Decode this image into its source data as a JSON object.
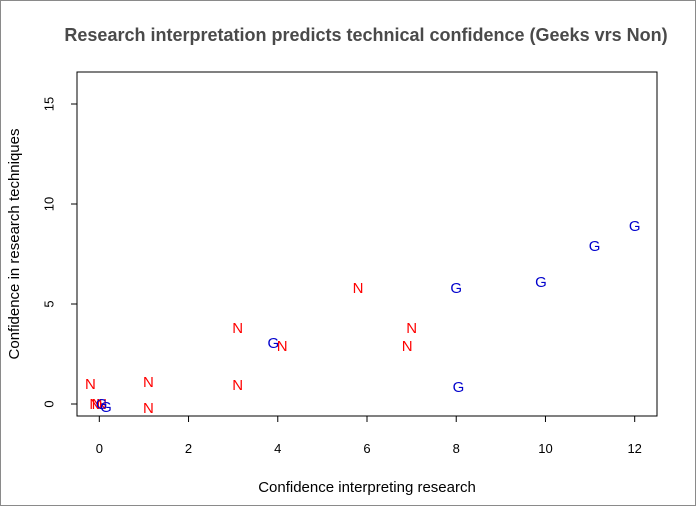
{
  "chart_data": {
    "type": "scatter",
    "title": "Research interpretation predicts technical confidence (Geeks vrs Non)",
    "xlabel": "Confidence interpreting research",
    "ylabel": "Confidence in research techniques",
    "xlim": [
      -0.5,
      12.5
    ],
    "ylim": [
      -0.6,
      16.6
    ],
    "xticks": [
      0,
      2,
      4,
      6,
      8,
      10,
      12
    ],
    "yticks": [
      0,
      5,
      10,
      15
    ],
    "grid": false,
    "colors": {
      "N": "#ff0000",
      "G": "#0000cc"
    },
    "series": [
      {
        "name": "N",
        "marker": "N",
        "points": [
          {
            "x": -0.2,
            "y": 1.0
          },
          {
            "x": -0.1,
            "y": 0.0
          },
          {
            "x": -0.05,
            "y": 0.0
          },
          {
            "x": 0.05,
            "y": 0.0
          },
          {
            "x": 1.1,
            "y": 1.1
          },
          {
            "x": 1.1,
            "y": -0.2
          },
          {
            "x": 3.1,
            "y": 3.8
          },
          {
            "x": 3.1,
            "y": 0.95
          },
          {
            "x": 4.1,
            "y": 2.9
          },
          {
            "x": 5.8,
            "y": 5.8
          },
          {
            "x": 7.0,
            "y": 3.8
          },
          {
            "x": 6.9,
            "y": 2.9
          }
        ]
      },
      {
        "name": "G",
        "marker": "G",
        "points": [
          {
            "x": 0.05,
            "y": 0.0
          },
          {
            "x": 0.15,
            "y": -0.15
          },
          {
            "x": 3.9,
            "y": 3.05
          },
          {
            "x": 8.0,
            "y": 5.8
          },
          {
            "x": 8.05,
            "y": 0.85
          },
          {
            "x": 9.9,
            "y": 6.1
          },
          {
            "x": 11.1,
            "y": 7.9
          },
          {
            "x": 12.0,
            "y": 8.9
          }
        ]
      }
    ]
  }
}
